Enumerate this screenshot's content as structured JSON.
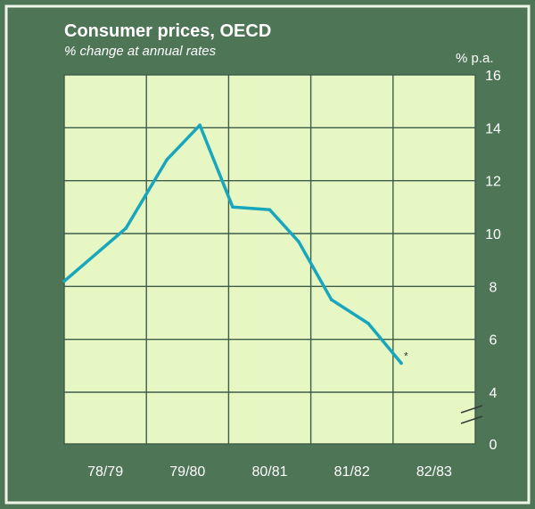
{
  "chart_data": {
    "type": "line",
    "title": "Consumer prices, OECD",
    "subtitle": "% change at annual rates",
    "ylabel": "% p.a.",
    "categories": [
      "78/79",
      "79/80",
      "80/81",
      "81/82",
      "82/83"
    ],
    "y_ticks": [
      "16",
      "14",
      "12",
      "10",
      "8",
      "6",
      "4",
      "0"
    ],
    "ylim": [
      0,
      16
    ],
    "axis_break": "between 0 and 4",
    "grid": true,
    "series": [
      {
        "values": [
          8.2,
          10.2,
          12.8,
          14.1,
          11.0,
          10.9,
          9.7,
          7.5,
          6.6,
          5.1
        ],
        "x": [
          0,
          0.75,
          1.25,
          1.65,
          2.05,
          2.5,
          2.85,
          3.25,
          3.7,
          4.1
        ]
      }
    ],
    "annotation": "*",
    "colors": {
      "background": "#4f7557",
      "plot_area": "#e6f7c4",
      "grid": "#3e5d48",
      "line": "#18a6bd",
      "text": "#ffffff",
      "frame": "#eef5e8"
    }
  }
}
